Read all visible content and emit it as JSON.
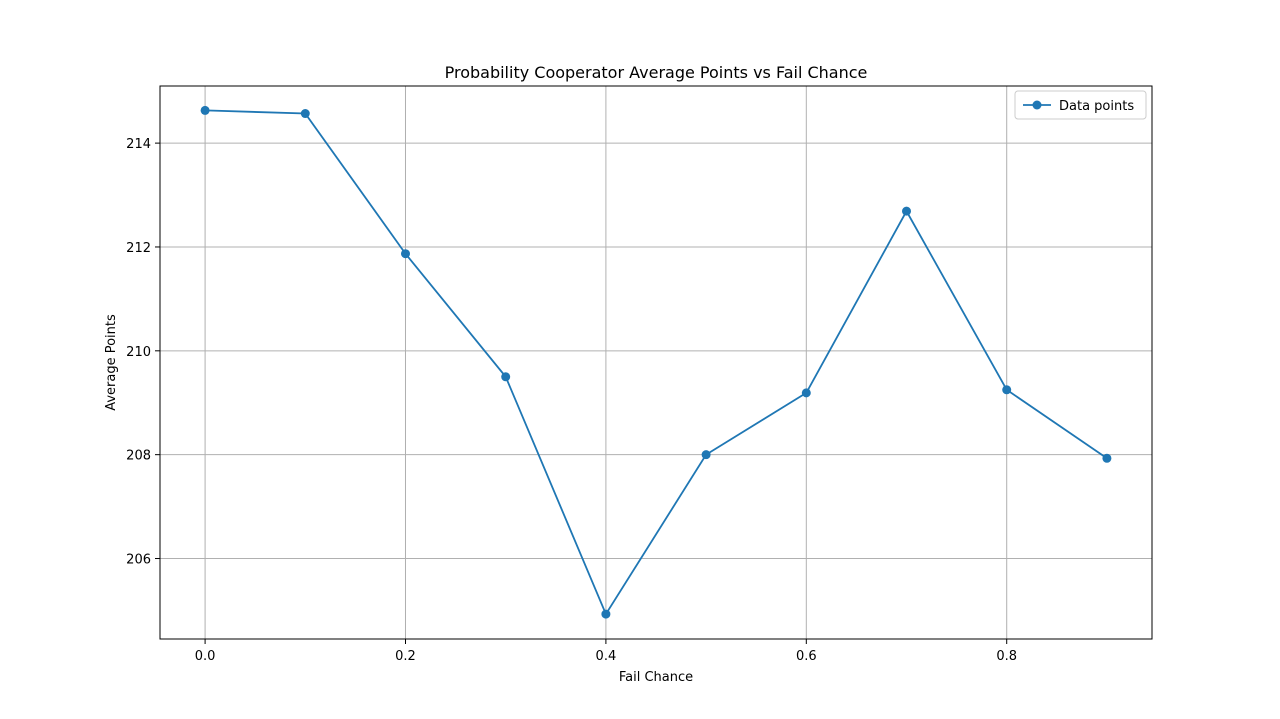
{
  "chart_data": {
    "type": "line",
    "title": "Probability Cooperator Average Points vs Fail Chance",
    "xlabel": "Fail Chance",
    "ylabel": "Average Points",
    "x": [
      0.0,
      0.1,
      0.2,
      0.3,
      0.4,
      0.5,
      0.6,
      0.7,
      0.8,
      0.9
    ],
    "series": [
      {
        "name": "Data points",
        "values": [
          214.63,
          214.57,
          211.87,
          209.5,
          204.93,
          208.0,
          209.19,
          212.69,
          209.25,
          207.93
        ],
        "color": "#1f77b4",
        "marker": "circle"
      }
    ],
    "xticks": [
      "0.0",
      "0.2",
      "0.4",
      "0.6",
      "0.8"
    ],
    "xtick_values": [
      0.0,
      0.2,
      0.4,
      0.6,
      0.8
    ],
    "yticks": [
      "206",
      "208",
      "210",
      "212",
      "214"
    ],
    "ytick_values": [
      206,
      208,
      210,
      212,
      214
    ],
    "xlim": [
      -0.045,
      0.945
    ],
    "ylim": [
      204.45,
      215.1
    ],
    "grid": true,
    "legend_position": "upper right"
  }
}
